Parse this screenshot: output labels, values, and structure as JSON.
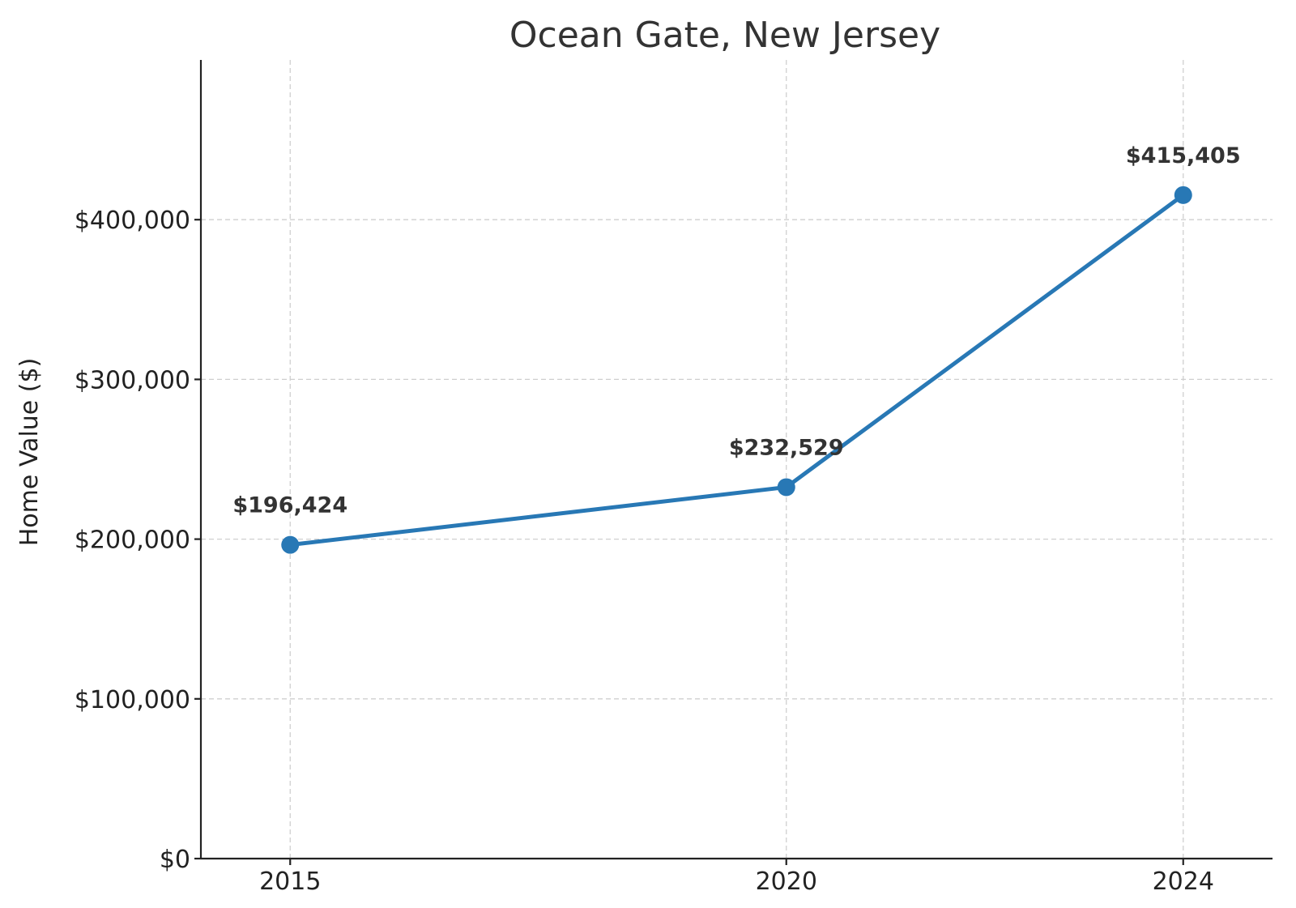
{
  "chart_data": {
    "type": "line",
    "title": "Ocean Gate, New Jersey",
    "xlabel": "",
    "ylabel": "Home Value ($)",
    "categories": [
      "2015",
      "2020",
      "2024"
    ],
    "x": [
      2015,
      2020,
      2024
    ],
    "series": [
      {
        "values": [
          196424,
          232529,
          415405
        ],
        "data_labels": [
          "$196,424",
          "$232,529",
          "$415,405"
        ],
        "color": "#2878b5",
        "marker": "circle"
      }
    ],
    "ylim": [
      0,
      500000
    ],
    "yticks": [
      0,
      100000,
      200000,
      300000,
      400000
    ],
    "ytick_labels": [
      "$0",
      "$100,000",
      "$200,000",
      "$300,000",
      "$400,000"
    ],
    "grid": true,
    "grid_style": "dashed",
    "legend": "none"
  }
}
